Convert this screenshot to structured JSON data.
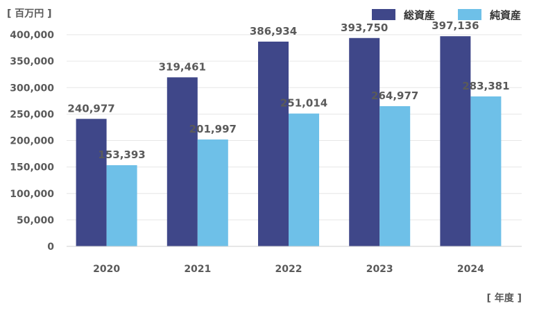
{
  "chart_data": {
    "type": "bar",
    "title": "",
    "ylabel": "[ 百万円 ]",
    "xlabel": "[ 年度 ]",
    "categories": [
      "2020",
      "2021",
      "2022",
      "2023",
      "2024"
    ],
    "series": [
      {
        "name": "総資産",
        "color": "#3f4789",
        "values": [
          240977,
          319461,
          386934,
          393750,
          397136
        ]
      },
      {
        "name": "純資産",
        "color": "#6ec0e8",
        "values": [
          153393,
          201997,
          251014,
          264977,
          283381
        ]
      }
    ],
    "ylim": [
      0,
      400000
    ],
    "yticks": [
      "0",
      "50,000",
      "100,000",
      "150,000",
      "200,000",
      "250,000",
      "300,000",
      "350,000",
      "400,000"
    ],
    "value_labels": [
      [
        "240,977",
        "319,461",
        "386,934",
        "393,750",
        "397,136"
      ],
      [
        "153,393",
        "201,997",
        "251,014",
        "264,977",
        "283,381"
      ]
    ],
    "grid": true,
    "legend_position": "top-right"
  }
}
